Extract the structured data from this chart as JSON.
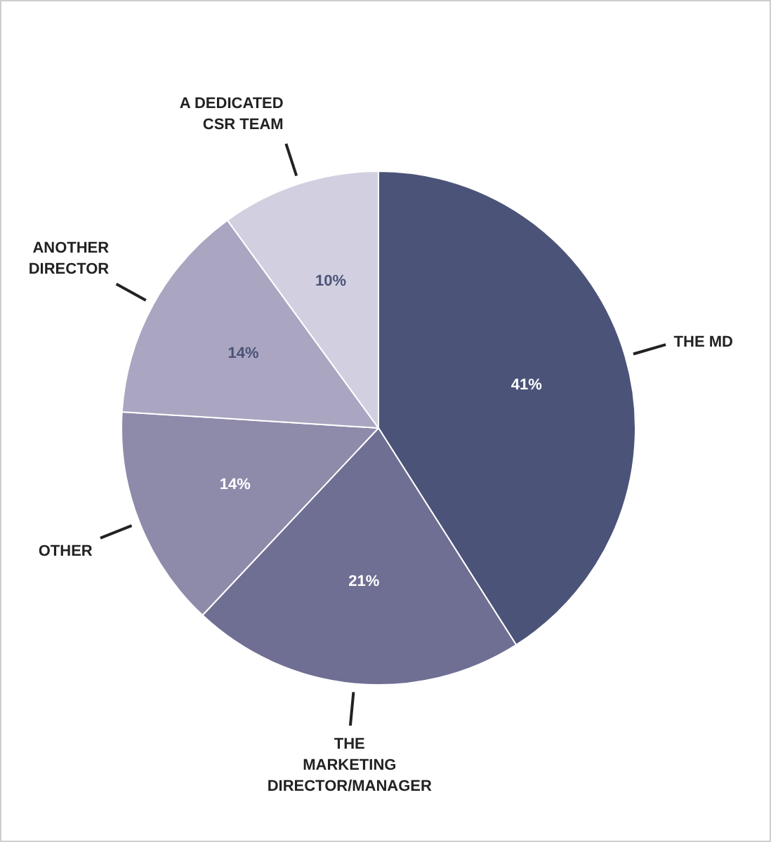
{
  "chart_data": {
    "type": "pie",
    "categories": [
      "THE MD",
      "THE MARKETING DIRECTOR/MANAGER",
      "OTHER",
      "ANOTHER DIRECTOR",
      "A DEDICATED CSR TEAM"
    ],
    "values": [
      41,
      21,
      14,
      14,
      10
    ],
    "value_labels": [
      "41%",
      "21%",
      "14%",
      "14%",
      "10%"
    ],
    "colors": [
      "#4b5378",
      "#6f6e93",
      "#8d8aaa",
      "#aaa6c1",
      "#d2d0e0"
    ],
    "legend": false
  }
}
